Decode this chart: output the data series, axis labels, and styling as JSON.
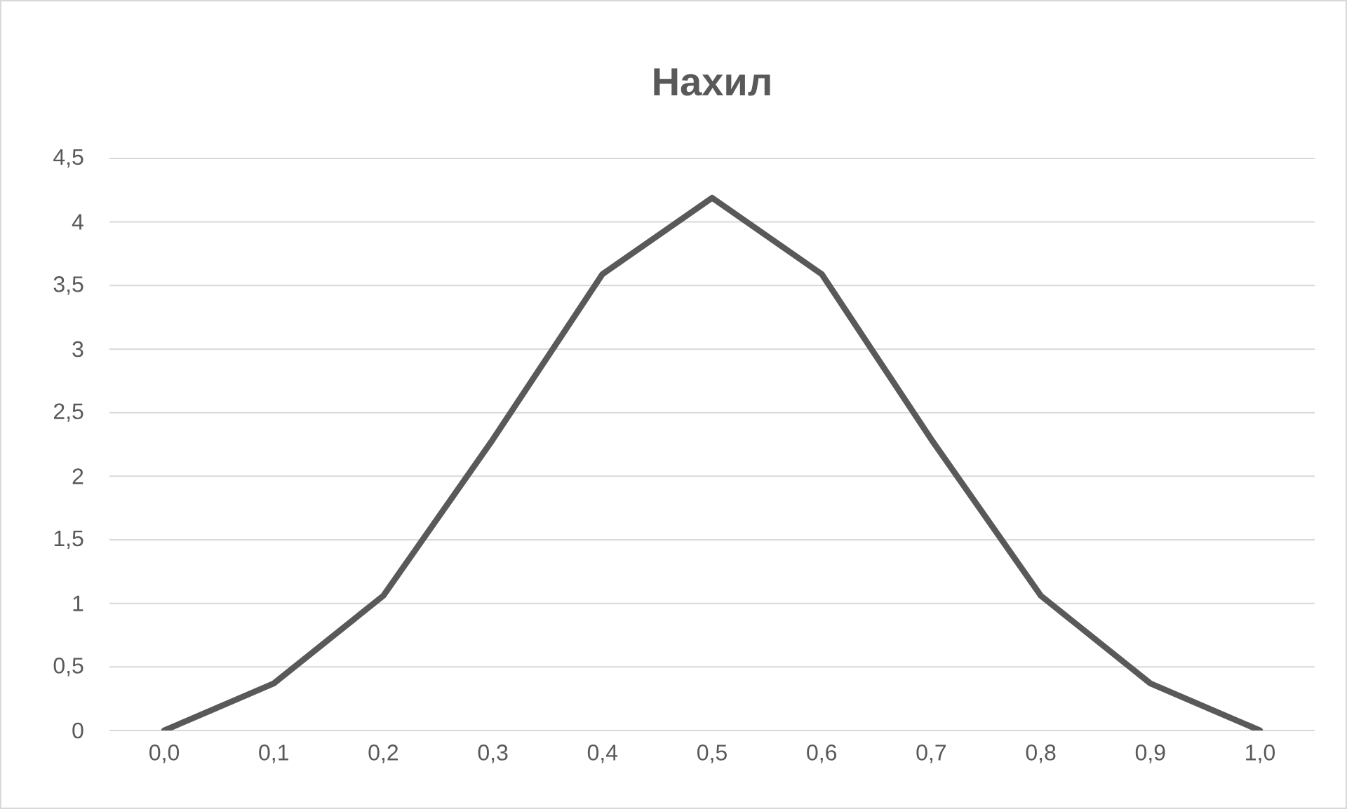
{
  "chart_data": {
    "type": "line",
    "title": "Нахил",
    "categories": [
      "0,0",
      "0,1",
      "0,2",
      "0,3",
      "0,4",
      "0,5",
      "0,6",
      "0,7",
      "0,8",
      "0,9",
      "1,0"
    ],
    "series": [
      {
        "color": "#595959",
        "values": [
          0,
          0.37,
          1.06,
          2.29,
          3.59,
          4.19,
          3.59,
          2.29,
          1.06,
          0.37,
          0
        ]
      }
    ],
    "ylim": [
      0,
      4.5
    ],
    "yticks": [
      0,
      {
        "value": 0.5,
        "label": "0,5"
      },
      1,
      {
        "value": 1.5,
        "label": "1,5"
      },
      2,
      {
        "value": 2.5,
        "label": "2,5"
      },
      3,
      {
        "value": 3.5,
        "label": "3,5"
      },
      4,
      {
        "value": 4.5,
        "label": "4,5"
      }
    ],
    "grid": "y"
  }
}
